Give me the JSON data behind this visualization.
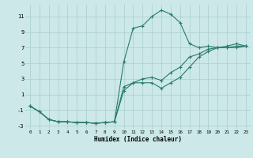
{
  "xlabel": "Humidex (Indice chaleur)",
  "bg_color": "#cce8e8",
  "grid_color": "#aacece",
  "line_color": "#2a7a6e",
  "xlim": [
    -0.5,
    23.5
  ],
  "ylim": [
    -3.5,
    12.5
  ],
  "xticks": [
    0,
    1,
    2,
    3,
    4,
    5,
    6,
    7,
    8,
    9,
    10,
    11,
    12,
    13,
    14,
    15,
    16,
    17,
    18,
    19,
    20,
    21,
    22,
    23
  ],
  "yticks": [
    -3,
    -1,
    1,
    3,
    5,
    7,
    9,
    11
  ],
  "curve_peak_x": [
    0,
    1,
    2,
    3,
    4,
    5,
    6,
    7,
    8,
    9,
    10,
    11,
    12,
    13,
    14,
    15,
    16,
    17,
    18,
    19,
    20,
    21,
    22,
    23
  ],
  "curve_peak_y": [
    -0.5,
    -1.2,
    -2.2,
    -2.5,
    -2.5,
    -2.6,
    -2.6,
    -2.7,
    -2.6,
    -2.5,
    5.2,
    9.5,
    9.8,
    11.0,
    11.8,
    11.3,
    10.2,
    7.5,
    7.0,
    7.2,
    7.0,
    7.2,
    7.5,
    7.2
  ],
  "curve_low_x": [
    0,
    1,
    2,
    3,
    4,
    5,
    6,
    7,
    8,
    9,
    10,
    11,
    12,
    13,
    14,
    15,
    16,
    17,
    18,
    19,
    20,
    21,
    22,
    23
  ],
  "curve_low_y": [
    -0.5,
    -1.2,
    -2.2,
    -2.5,
    -2.5,
    -2.6,
    -2.6,
    -2.7,
    -2.6,
    -2.5,
    1.5,
    2.5,
    2.5,
    2.5,
    1.8,
    2.5,
    3.2,
    4.5,
    5.8,
    6.5,
    7.0,
    7.0,
    7.0,
    7.2
  ],
  "curve_mid_x": [
    0,
    1,
    2,
    3,
    4,
    5,
    6,
    7,
    8,
    9,
    10,
    11,
    12,
    13,
    14,
    15,
    16,
    17,
    18,
    19,
    20,
    21,
    22,
    23
  ],
  "curve_mid_y": [
    -0.5,
    -1.2,
    -2.2,
    -2.5,
    -2.5,
    -2.6,
    -2.6,
    -2.7,
    -2.6,
    -2.5,
    2.0,
    2.5,
    3.0,
    3.2,
    2.8,
    3.8,
    4.5,
    5.8,
    6.2,
    6.8,
    7.0,
    7.0,
    7.2,
    7.2
  ]
}
